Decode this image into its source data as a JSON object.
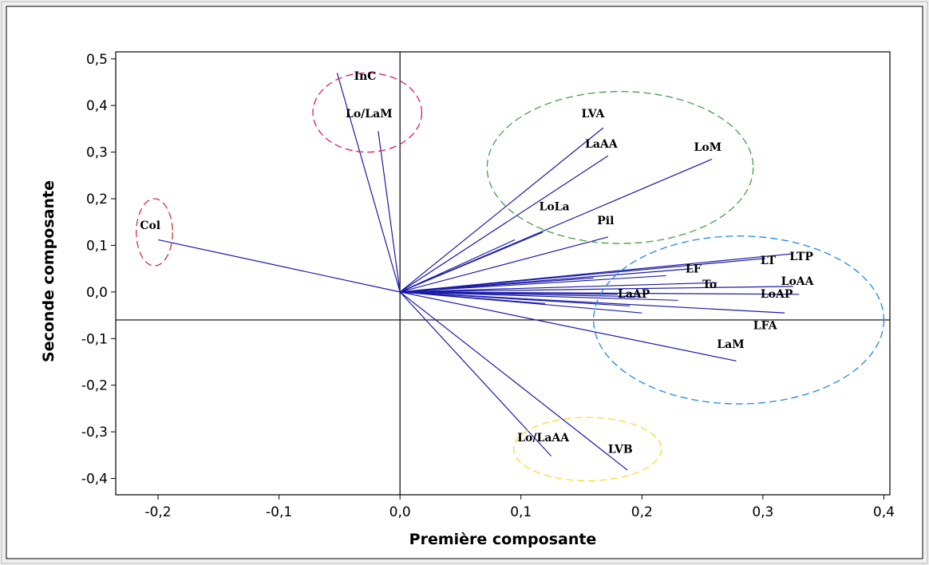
{
  "chart_data": {
    "type": "scatter",
    "subtype": "pca-loading-plot",
    "xlabel": "Première composante",
    "ylabel": "Seconde composante",
    "xlim": [
      -0.235,
      0.405
    ],
    "ylim": [
      -0.435,
      0.515
    ],
    "x_ticks": [
      -0.2,
      -0.1,
      0.0,
      0.1,
      0.2,
      0.3,
      0.4
    ],
    "x_tick_labels": [
      "-0,2",
      "-0,1",
      "0,0",
      "0,1",
      "0,2",
      "0,3",
      "0,4"
    ],
    "y_ticks": [
      0.5,
      0.4,
      0.3,
      0.2,
      0.1,
      0.0,
      -0.1,
      -0.2,
      -0.3,
      -0.4
    ],
    "y_tick_labels": [
      "0,5",
      "0,4",
      "0,3",
      "0,2",
      "0,1",
      "0,0",
      "-0,1",
      "-0,2",
      "-0,3",
      "-0,4"
    ],
    "reference_lines": {
      "vertical_x": 0.0,
      "horizontal_y": -0.06
    },
    "line_color": "#1a1aa6",
    "vectors": [
      {
        "label": "InC",
        "x": -0.052,
        "y": 0.47,
        "lx": -0.038,
        "ly": 0.455
      },
      {
        "label": "Lo/LaM",
        "x": -0.018,
        "y": 0.345,
        "lx": -0.045,
        "ly": 0.375
      },
      {
        "label": "Col",
        "x": -0.2,
        "y": 0.112,
        "lx": -0.215,
        "ly": 0.135
      },
      {
        "label": "LVA",
        "x": 0.168,
        "y": 0.352,
        "lx": 0.15,
        "ly": 0.375
      },
      {
        "label": "LaAA",
        "x": 0.172,
        "y": 0.292,
        "lx": 0.153,
        "ly": 0.31
      },
      {
        "label": "LoM",
        "x": 0.258,
        "y": 0.285,
        "lx": 0.243,
        "ly": 0.303
      },
      {
        "label": "LoLa",
        "x": 0.118,
        "y": 0.128,
        "lx": 0.115,
        "ly": 0.175
      },
      {
        "label": "Pil",
        "x": 0.172,
        "y": 0.118,
        "lx": 0.163,
        "ly": 0.145
      },
      {
        "label": "LT",
        "x": 0.302,
        "y": 0.072,
        "lx": 0.298,
        "ly": 0.06
      },
      {
        "label": "LTP",
        "x": 0.325,
        "y": 0.082,
        "lx": 0.322,
        "ly": 0.068
      },
      {
        "label": "LF",
        "x": 0.242,
        "y": 0.05,
        "lx": 0.236,
        "ly": 0.042
      },
      {
        "label": "To",
        "x": 0.262,
        "y": 0.02,
        "lx": 0.25,
        "ly": 0.008
      },
      {
        "label": "LoAA",
        "x": 0.325,
        "y": 0.012,
        "lx": 0.315,
        "ly": 0.015
      },
      {
        "label": "LaAP",
        "x": 0.198,
        "y": -0.01,
        "lx": 0.18,
        "ly": -0.012
      },
      {
        "label": "LoAP",
        "x": 0.33,
        "y": -0.005,
        "lx": 0.298,
        "ly": -0.012
      },
      {
        "label": "LFA",
        "x": 0.318,
        "y": -0.045,
        "lx": 0.292,
        "ly": -0.08
      },
      {
        "label": "LaM",
        "x": 0.278,
        "y": -0.148,
        "lx": 0.262,
        "ly": -0.12
      },
      {
        "label": "Lo/LaAA",
        "x": 0.125,
        "y": -0.352,
        "lx": 0.097,
        "ly": -0.32
      },
      {
        "label": "LVB",
        "x": 0.188,
        "y": -0.382,
        "lx": 0.172,
        "ly": -0.345
      }
    ],
    "extra_lines": [
      {
        "x": 0.2,
        "y": -0.045
      },
      {
        "x": 0.19,
        "y": -0.03
      },
      {
        "x": 0.18,
        "y": -0.005
      },
      {
        "x": 0.23,
        "y": -0.018
      },
      {
        "x": 0.16,
        "y": 0.03
      },
      {
        "x": 0.12,
        "y": -0.025
      },
      {
        "x": 0.095,
        "y": 0.112
      },
      {
        "x": 0.22,
        "y": 0.035
      }
    ],
    "groups": [
      {
        "color": "#d81b60",
        "cx": -0.027,
        "cy": 0.385,
        "rx": 0.045,
        "ry": 0.085
      },
      {
        "color": "#d32f2f",
        "cx": -0.203,
        "cy": 0.128,
        "rx": 0.015,
        "ry": 0.072
      },
      {
        "color": "#43a047",
        "cx": 0.182,
        "cy": 0.267,
        "rx": 0.11,
        "ry": 0.163
      },
      {
        "color": "#1e88e5",
        "cx": 0.28,
        "cy": -0.06,
        "rx": 0.12,
        "ry": 0.18
      },
      {
        "color": "#fdd835",
        "cx": 0.155,
        "cy": -0.337,
        "rx": 0.061,
        "ry": 0.068
      }
    ]
  }
}
